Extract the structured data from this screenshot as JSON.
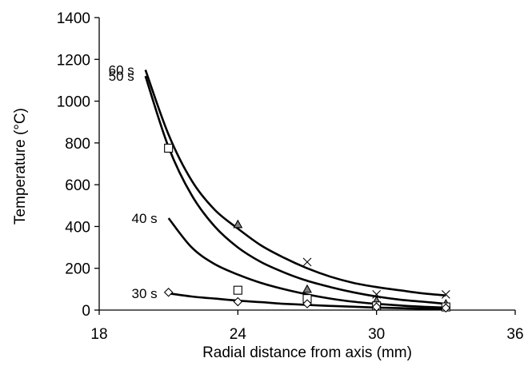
{
  "chart_data": {
    "type": "scatter",
    "title": "",
    "xlabel": "Radial distance  from axis (mm)",
    "ylabel": "Temperature (°C)",
    "xlim": [
      18,
      36
    ],
    "ylim": [
      0,
      1400
    ],
    "xticks": [
      "18",
      "24",
      "30",
      "36"
    ],
    "yticks": [
      "0",
      "200",
      "400",
      "600",
      "800",
      "1000",
      "1200",
      "1400"
    ],
    "grid": false,
    "legend": "none",
    "fitted_curves": [
      {
        "label": "60 s",
        "x": [
          20.0,
          21.0,
          22.0,
          23.0,
          24.0,
          25.0,
          26.0,
          27.0,
          28.0,
          29.0,
          30.0,
          31.0,
          32.0,
          33.0
        ],
        "y": [
          1150,
          840,
          620,
          480,
          390,
          310,
          250,
          200,
          160,
          130,
          110,
          95,
          80,
          70
        ]
      },
      {
        "label": "50 s",
        "x": [
          20.0,
          21.0,
          22.0,
          23.0,
          24.0,
          25.0,
          26.0,
          27.0,
          28.0,
          29.0,
          30.0,
          31.0,
          32.0,
          33.0
        ],
        "y": [
          1120,
          780,
          550,
          400,
          300,
          230,
          180,
          140,
          110,
          85,
          65,
          50,
          40,
          30
        ]
      },
      {
        "label": "40 s",
        "x": [
          21.0,
          22.0,
          23.0,
          24.0,
          25.0,
          26.0,
          27.0,
          28.0,
          29.0,
          30.0,
          31.0,
          32.0,
          33.0
        ],
        "y": [
          440,
          300,
          220,
          170,
          130,
          100,
          75,
          55,
          40,
          30,
          22,
          16,
          12
        ]
      },
      {
        "label": "30 s",
        "x": [
          21.0,
          22.0,
          23.0,
          24.0,
          25.0,
          26.0,
          27.0,
          28.0,
          29.0,
          30.0,
          31.0,
          32.0,
          33.0
        ],
        "y": [
          80,
          65,
          55,
          45,
          38,
          30,
          25,
          20,
          16,
          12,
          9,
          7,
          5
        ]
      }
    ],
    "series": [
      {
        "marker": "x",
        "x": [
          27.0,
          30.0,
          33.0
        ],
        "y": [
          230,
          75,
          75
        ]
      },
      {
        "marker": "triangle",
        "x": [
          24.0,
          27.0,
          30.0,
          33.0
        ],
        "y": [
          410,
          100,
          45,
          30
        ]
      },
      {
        "marker": "square",
        "x": [
          21.0,
          24.0,
          27.0,
          30.0,
          33.0
        ],
        "y": [
          775,
          95,
          55,
          20,
          15
        ]
      },
      {
        "marker": "diamond",
        "x": [
          21.0,
          24.0,
          27.0,
          30.0,
          33.0
        ],
        "y": [
          85,
          40,
          30,
          15,
          10
        ]
      }
    ]
  }
}
